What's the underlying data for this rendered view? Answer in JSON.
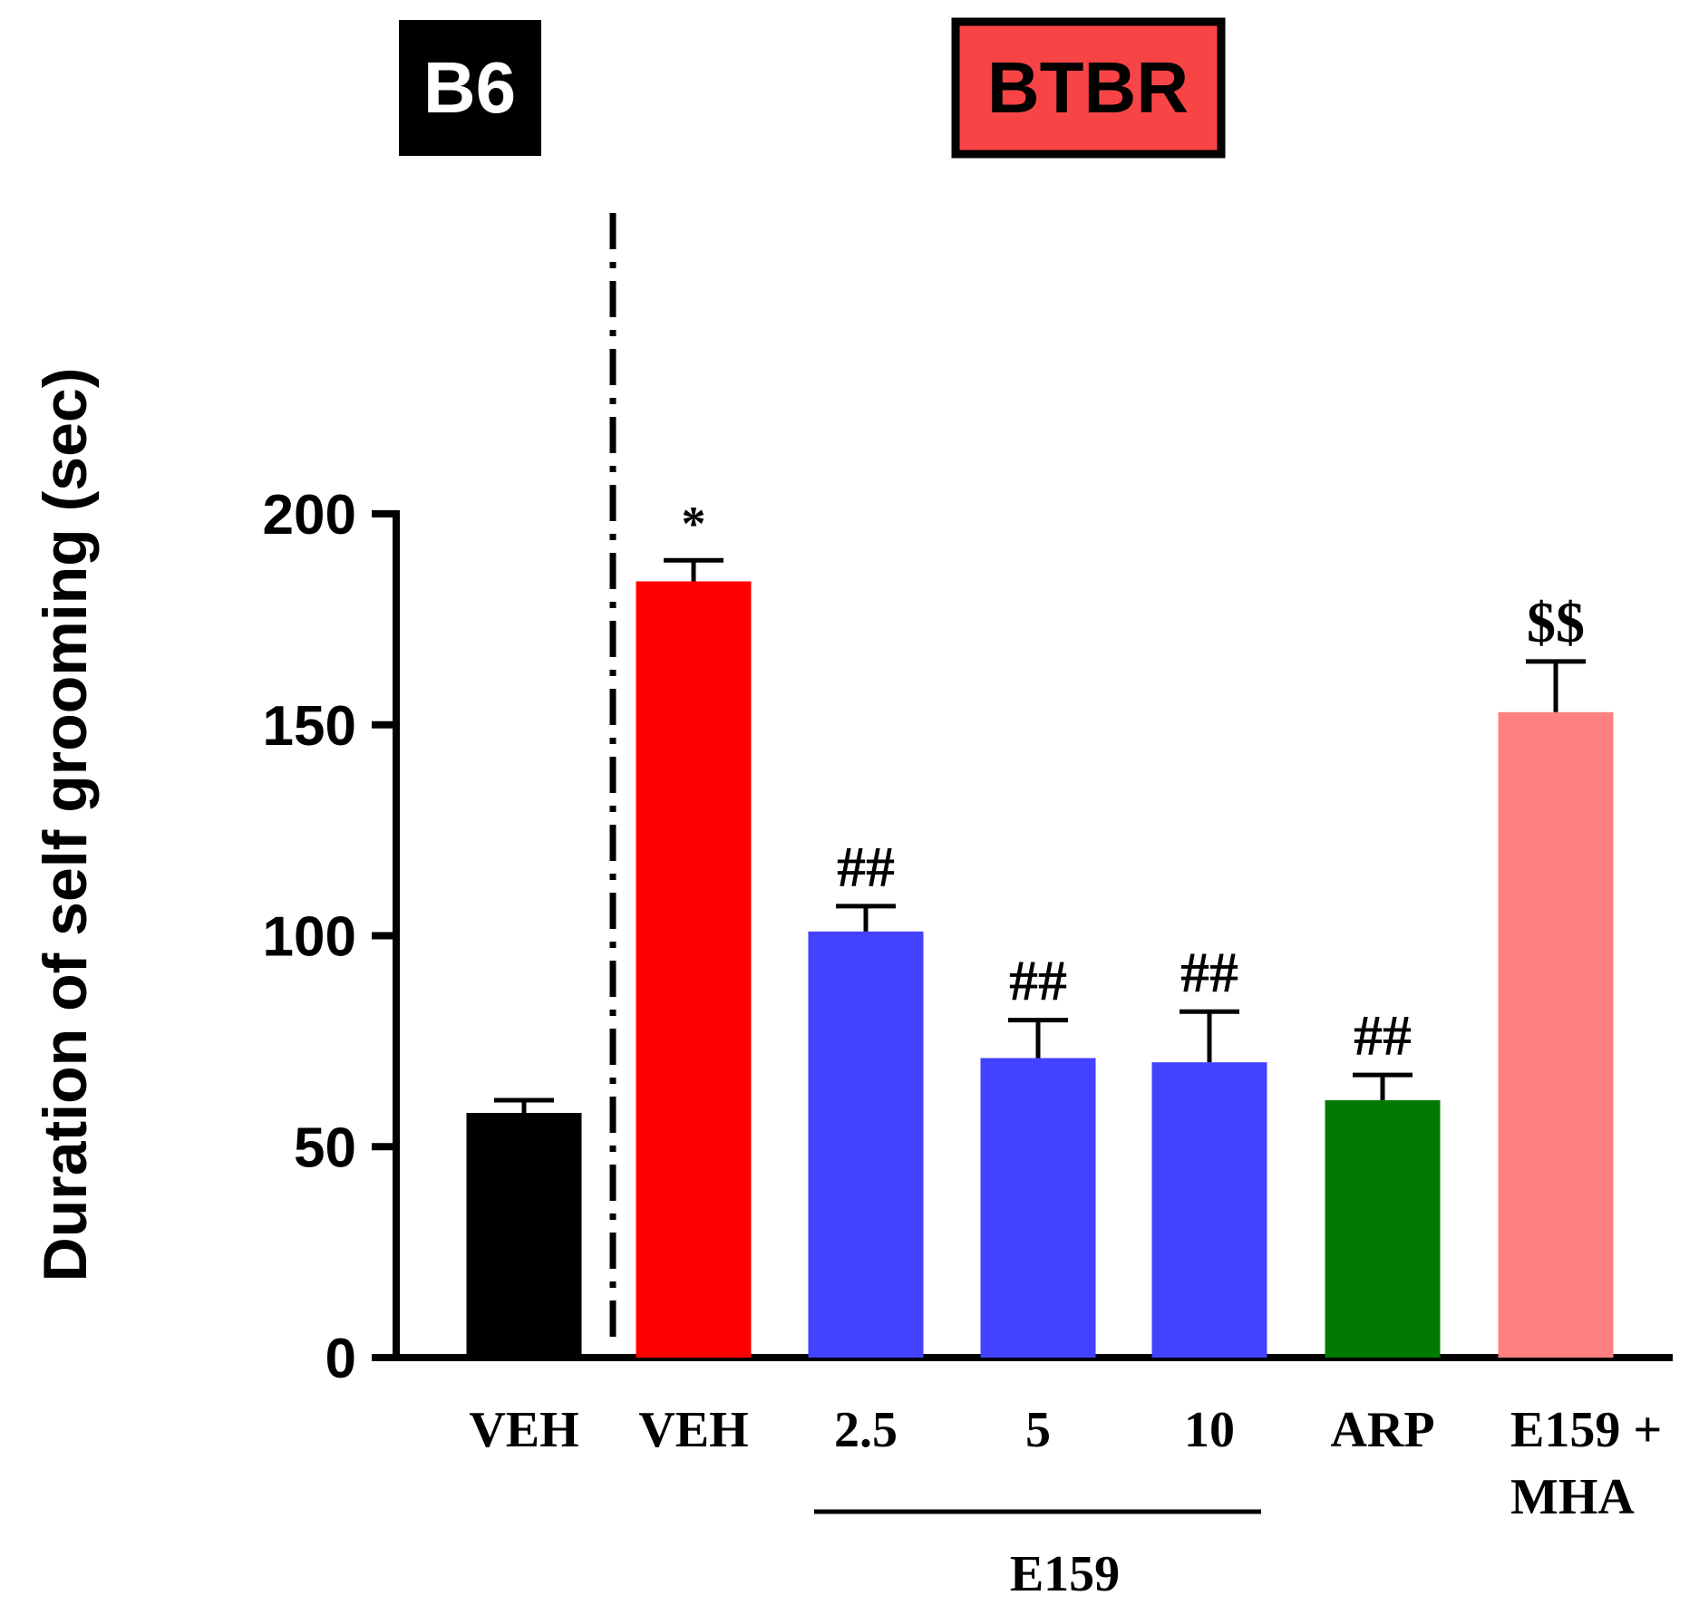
{
  "chart_data": {
    "type": "bar",
    "title": "",
    "ylabel": "Duration of self grooming (sec)",
    "xlabel": "",
    "ylim": [
      0,
      200
    ],
    "yticks": [
      0,
      50,
      100,
      150,
      200
    ],
    "groups": [
      {
        "label": "B6",
        "fill": "#000000",
        "text_color": "#ffffff"
      },
      {
        "label": "BTBR",
        "fill": "#f94446",
        "text_color": "#000000"
      }
    ],
    "categories": [
      "VEH",
      "VEH",
      "2.5",
      "5",
      "10",
      "ARP",
      "E159 + MHA"
    ],
    "category_lines": [
      [
        "VEH"
      ],
      [
        "VEH"
      ],
      [
        "2.5"
      ],
      [
        "5"
      ],
      [
        "10"
      ],
      [
        "ARP"
      ],
      [
        "E159 +",
        "MHA"
      ]
    ],
    "values": [
      58,
      184,
      101,
      71,
      70,
      61,
      153
    ],
    "errors": [
      3,
      5,
      6,
      9,
      12,
      6,
      12
    ],
    "annotations": [
      "",
      "*",
      "##",
      "##",
      "##",
      "##",
      "$$"
    ],
    "colors": [
      "#000000",
      "#ff0000",
      "#4242ff",
      "#4242ff",
      "#4242ff",
      "#007a00",
      "#ff8080"
    ],
    "bracket": {
      "label": "E159",
      "from_index": 2,
      "to_index": 4
    }
  }
}
